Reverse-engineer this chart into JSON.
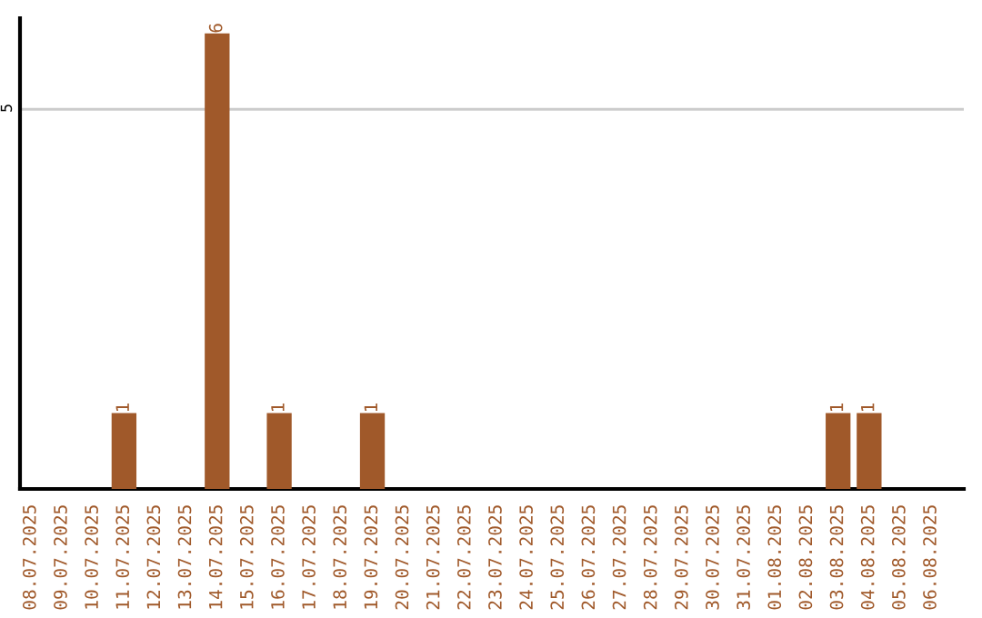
{
  "chart_data": {
    "type": "bar",
    "categories": [
      "08.07.2025",
      "09.07.2025",
      "10.07.2025",
      "11.07.2025",
      "12.07.2025",
      "13.07.2025",
      "14.07.2025",
      "15.07.2025",
      "16.07.2025",
      "17.07.2025",
      "18.07.2025",
      "19.07.2025",
      "20.07.2025",
      "21.07.2025",
      "22.07.2025",
      "23.07.2025",
      "24.07.2025",
      "25.07.2025",
      "26.07.2025",
      "27.07.2025",
      "28.07.2025",
      "29.07.2025",
      "30.07.2025",
      "31.07.2025",
      "01.08.2025",
      "02.08.2025",
      "03.08.2025",
      "04.08.2025",
      "05.08.2025",
      "06.08.2025"
    ],
    "values": [
      0,
      0,
      0,
      1,
      0,
      0,
      6,
      0,
      1,
      0,
      0,
      1,
      0,
      0,
      0,
      0,
      0,
      0,
      0,
      0,
      0,
      0,
      0,
      0,
      0,
      0,
      1,
      1,
      0,
      0
    ],
    "value_labels": [
      null,
      null,
      null,
      "1",
      null,
      null,
      "6",
      null,
      "1",
      null,
      null,
      "1",
      null,
      null,
      null,
      null,
      null,
      null,
      null,
      null,
      null,
      null,
      null,
      null,
      null,
      null,
      "1",
      "1",
      null,
      null
    ],
    "color": "#a0592a",
    "ylim": [
      0,
      6.2
    ],
    "yticks": [
      5
    ],
    "grid": "y",
    "legend": false
  }
}
